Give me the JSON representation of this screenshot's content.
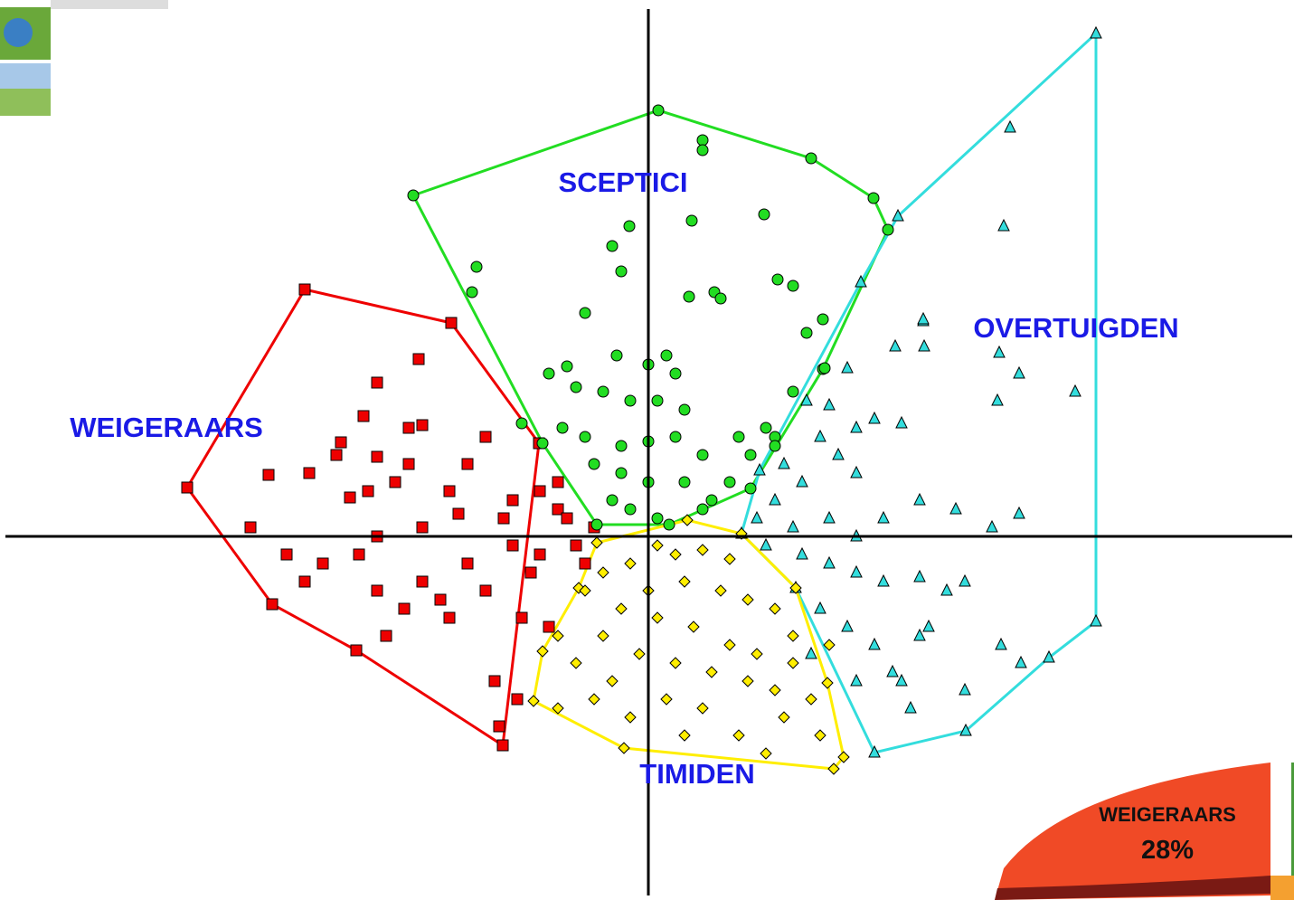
{
  "chart_data": {
    "type": "scatter",
    "xlim": [
      -717,
      714
    ],
    "ylim": [
      -402,
      593
    ],
    "series": [
      {
        "name": "WEIGERAARS",
        "color": "#ee0000",
        "marker": "square",
        "x": [
          -254,
          -300,
          -250,
          -315,
          -265,
          -340,
          -300,
          -345,
          -265,
          -420,
          -375,
          -310,
          -330,
          -280,
          -220,
          -200,
          -180,
          -150,
          -120,
          -100,
          -160,
          -210,
          -250,
          -300,
          -320,
          -360,
          -300,
          -250,
          -200,
          -150,
          -120,
          -80,
          -90,
          -60,
          -180,
          -220,
          -140,
          -110,
          -380,
          -290,
          -170,
          -145,
          -165,
          -400,
          -440,
          -230,
          -270,
          -130,
          -70,
          -100
        ],
        "y": [
          196,
          170,
          123,
          133,
          120,
          104,
          88,
          90,
          80,
          68,
          70,
          50,
          43,
          60,
          50,
          80,
          110,
          40,
          50,
          30,
          20,
          25,
          10,
          0,
          -20,
          -30,
          -60,
          -50,
          -30,
          -10,
          -20,
          -10,
          20,
          10,
          -60,
          -90,
          -90,
          -100,
          -50,
          -110,
          -160,
          -180,
          -210,
          -20,
          10,
          -70,
          -80,
          -40,
          -30,
          60
        ],
        "hull_x": [
          -380,
          -218,
          -121,
          -161,
          -323,
          -416,
          -510
        ],
        "hull_y": [
          273,
          236,
          103,
          -231,
          -126,
          -75,
          54
        ]
      },
      {
        "name": "SCEPTICI",
        "color": "#22dd22",
        "marker": "circle",
        "x": [
          60,
          60,
          -21,
          -40,
          -30,
          -190,
          -195,
          48,
          128,
          143,
          160,
          73,
          80,
          45,
          -70,
          -35,
          0,
          20,
          30,
          -90,
          -110,
          -80,
          -50,
          -20,
          10,
          40,
          -140,
          -95,
          -70,
          -30,
          0,
          30,
          60,
          90,
          113,
          140,
          -60,
          -30,
          0,
          40,
          70,
          -20,
          10,
          60,
          -40,
          130,
          193,
          175,
          195,
          160,
          140,
          100
        ],
        "y": [
          438,
          427,
          343,
          321,
          293,
          298,
          270,
          349,
          356,
          284,
          277,
          270,
          263,
          265,
          247,
          200,
          190,
          200,
          180,
          188,
          180,
          165,
          160,
          150,
          150,
          140,
          125,
          120,
          110,
          100,
          105,
          110,
          90,
          60,
          90,
          110,
          80,
          70,
          60,
          60,
          40,
          30,
          20,
          30,
          40,
          120,
          240,
          225,
          186,
          160,
          100,
          110
        ],
        "hull_x": [
          -260,
          11,
          180,
          249,
          265,
          193,
          113,
          23,
          -57,
          -117
        ],
        "hull_y": [
          377,
          471,
          418,
          374,
          339,
          185,
          53,
          13,
          13,
          103
        ]
      },
      {
        "name": "OVERTUIGDEN",
        "color": "#33dddd",
        "marker": "triangle",
        "x": [
          400,
          393,
          304,
          304,
          388,
          410,
          472,
          386,
          305,
          273,
          220,
          175,
          200,
          230,
          250,
          280,
          190,
          210,
          230,
          150,
          170,
          140,
          120,
          160,
          200,
          230,
          260,
          300,
          340,
          380,
          410,
          130,
          170,
          200,
          230,
          260,
          300,
          330,
          350,
          190,
          220,
          250,
          300,
          350,
          390,
          412,
          180,
          270,
          290,
          230,
          280,
          310
        ],
        "y": [
          452,
          343,
          238,
          240,
          203,
          180,
          160,
          150,
          210,
          210,
          186,
          150,
          145,
          120,
          130,
          125,
          110,
          90,
          70,
          80,
          60,
          40,
          20,
          10,
          20,
          0,
          20,
          40,
          30,
          10,
          25,
          -10,
          -20,
          -30,
          -40,
          -50,
          -45,
          -60,
          -50,
          -80,
          -100,
          -120,
          -110,
          -170,
          -120,
          -140,
          -130,
          -150,
          -190,
          -160,
          -160,
          -100
        ],
        "hull_x": [
          495,
          495,
          443,
          351,
          250,
          163,
          103,
          123,
          235,
          276
        ],
        "hull_y": [
          556,
          -94,
          -134,
          -215,
          -239,
          -57,
          3,
          73,
          281,
          354
        ]
      },
      {
        "name": "TIMIDEN",
        "color": "#ffee00",
        "marker": "diamond",
        "x": [
          10,
          30,
          60,
          90,
          -20,
          -50,
          -70,
          0,
          40,
          80,
          110,
          140,
          160,
          -30,
          10,
          50,
          90,
          120,
          -10,
          30,
          70,
          110,
          140,
          180,
          -40,
          -80,
          -100,
          -20,
          20,
          60,
          100,
          150,
          190,
          -50,
          160,
          200,
          -100,
          -60,
          40,
          130
        ],
        "y": [
          -10,
          -20,
          -15,
          -25,
          -30,
          -40,
          -60,
          -60,
          -50,
          -60,
          -70,
          -80,
          -110,
          -80,
          -90,
          -100,
          -120,
          -130,
          -130,
          -140,
          -150,
          -160,
          -170,
          -180,
          -160,
          -140,
          -190,
          -200,
          -180,
          -190,
          -220,
          -200,
          -220,
          -110,
          -140,
          -120,
          -110,
          -180,
          -220,
          -240
        ],
        "hull_x": [
          -127,
          -27,
          205,
          216,
          198,
          163,
          103,
          43,
          -57,
          -77,
          -117
        ],
        "hull_y": [
          -182,
          -234,
          -257,
          -244,
          -162,
          -57,
          3,
          18,
          -7,
          -57,
          -127
        ]
      }
    ]
  },
  "pie_fragment": {
    "label": "WEIGERAARS",
    "percent": "28%"
  }
}
